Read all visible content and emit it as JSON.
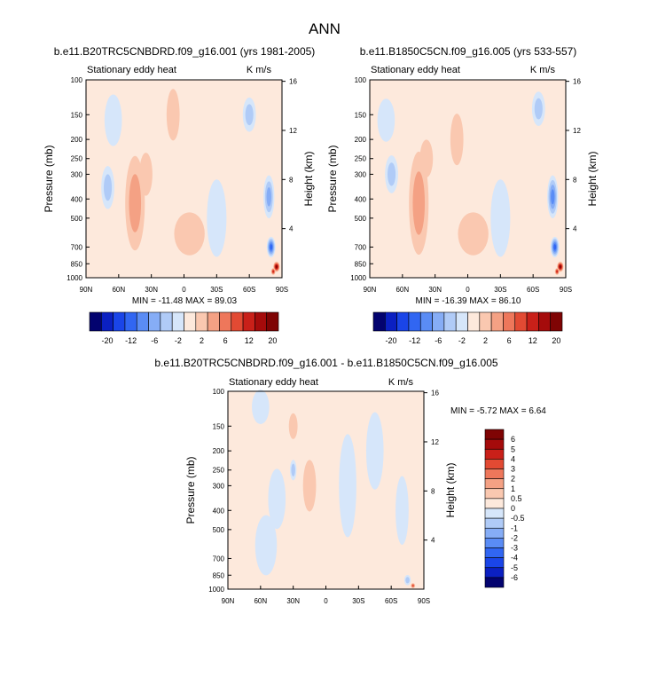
{
  "figure_title": "ANN",
  "chart_data": [
    {
      "type": "heatmap",
      "title": "b.e11.B20TRC5CNBDRD.f09_g16.001 (yrs 1981-2005)",
      "left_label": "Stationary eddy heat",
      "right_label": "K m/s",
      "xlabel": "",
      "ylabel": "Pressure (mb)",
      "ylabel_right": "Height (km)",
      "xticks": [
        "90N",
        "60N",
        "30N",
        "0",
        "30S",
        "60S",
        "90S"
      ],
      "yticks": [
        "100",
        "150",
        "200",
        "250",
        "300",
        "400",
        "500",
        "700",
        "850",
        "1000"
      ],
      "yticks_right": [
        "16",
        "12",
        "8",
        "4"
      ],
      "xlim": [
        90,
        -90
      ],
      "ylim": [
        1000,
        100
      ],
      "ylog": true,
      "stats": "MIN = -11.48  MAX = 89.03",
      "color_levels": [
        "-20",
        "-12",
        "-6",
        "-2",
        "2",
        "6",
        "12",
        "20"
      ],
      "data_ranges": {
        "min": -11.48,
        "max": 89.03
      }
    },
    {
      "type": "heatmap",
      "title": "b.e11.B1850C5CN.f09_g16.005 (yrs 533-557)",
      "left_label": "Stationary eddy heat",
      "right_label": "K m/s",
      "xlabel": "",
      "ylabel": "Pressure (mb)",
      "ylabel_right": "Height (km)",
      "xticks": [
        "90N",
        "60N",
        "30N",
        "0",
        "30S",
        "60S",
        "90S"
      ],
      "yticks": [
        "100",
        "150",
        "200",
        "250",
        "300",
        "400",
        "500",
        "700",
        "850",
        "1000"
      ],
      "yticks_right": [
        "16",
        "12",
        "8",
        "4"
      ],
      "xlim": [
        90,
        -90
      ],
      "ylim": [
        1000,
        100
      ],
      "ylog": true,
      "stats": "MIN = -16.39  MAX = 86.10",
      "color_levels": [
        "-20",
        "-12",
        "-6",
        "-2",
        "2",
        "6",
        "12",
        "20"
      ],
      "data_ranges": {
        "min": -16.39,
        "max": 86.1
      }
    },
    {
      "type": "heatmap",
      "title": "b.e11.B20TRC5CNBDRD.f09_g16.001 - b.e11.B1850C5CN.f09_g16.005",
      "left_label": "Stationary eddy heat",
      "right_label": "K m/s",
      "xlabel": "",
      "ylabel": "Pressure (mb)",
      "ylabel_right": "Height (km)",
      "xticks": [
        "90N",
        "60N",
        "30N",
        "0",
        "30S",
        "60S",
        "90S"
      ],
      "yticks": [
        "100",
        "150",
        "200",
        "250",
        "300",
        "400",
        "500",
        "700",
        "850",
        "1000"
      ],
      "yticks_right": [
        "16",
        "12",
        "8",
        "4"
      ],
      "xlim": [
        90,
        -90
      ],
      "ylim": [
        1000,
        100
      ],
      "ylog": true,
      "stats": "MIN = -5.72  MAX =  6.64",
      "color_levels": [
        "6",
        "5",
        "4",
        "3",
        "2",
        "1",
        "0.5",
        "0",
        "-0.5",
        "-1",
        "-2",
        "-3",
        "-4",
        "-5",
        "-6"
      ],
      "data_ranges": {
        "min": -5.72,
        "max": 6.64
      }
    }
  ],
  "palettes": {
    "top": [
      "#03036f",
      "#0b20c2",
      "#1a45e8",
      "#3166f2",
      "#5a8cf5",
      "#86adf6",
      "#b0cbf7",
      "#d6e6fa",
      "#fde9dc",
      "#fac8b0",
      "#f4a184",
      "#ee775b",
      "#e24a33",
      "#c92019",
      "#a50b0b",
      "#7f0404"
    ],
    "diff": [
      "#7f0404",
      "#a50b0b",
      "#c92019",
      "#e24a33",
      "#ee775b",
      "#f4a184",
      "#fac8b0",
      "#fde9dc",
      "#d6e6fa",
      "#b0cbf7",
      "#86adf6",
      "#5a8cf5",
      "#3166f2",
      "#1a45e8",
      "#0b20c2",
      "#03036f"
    ]
  }
}
